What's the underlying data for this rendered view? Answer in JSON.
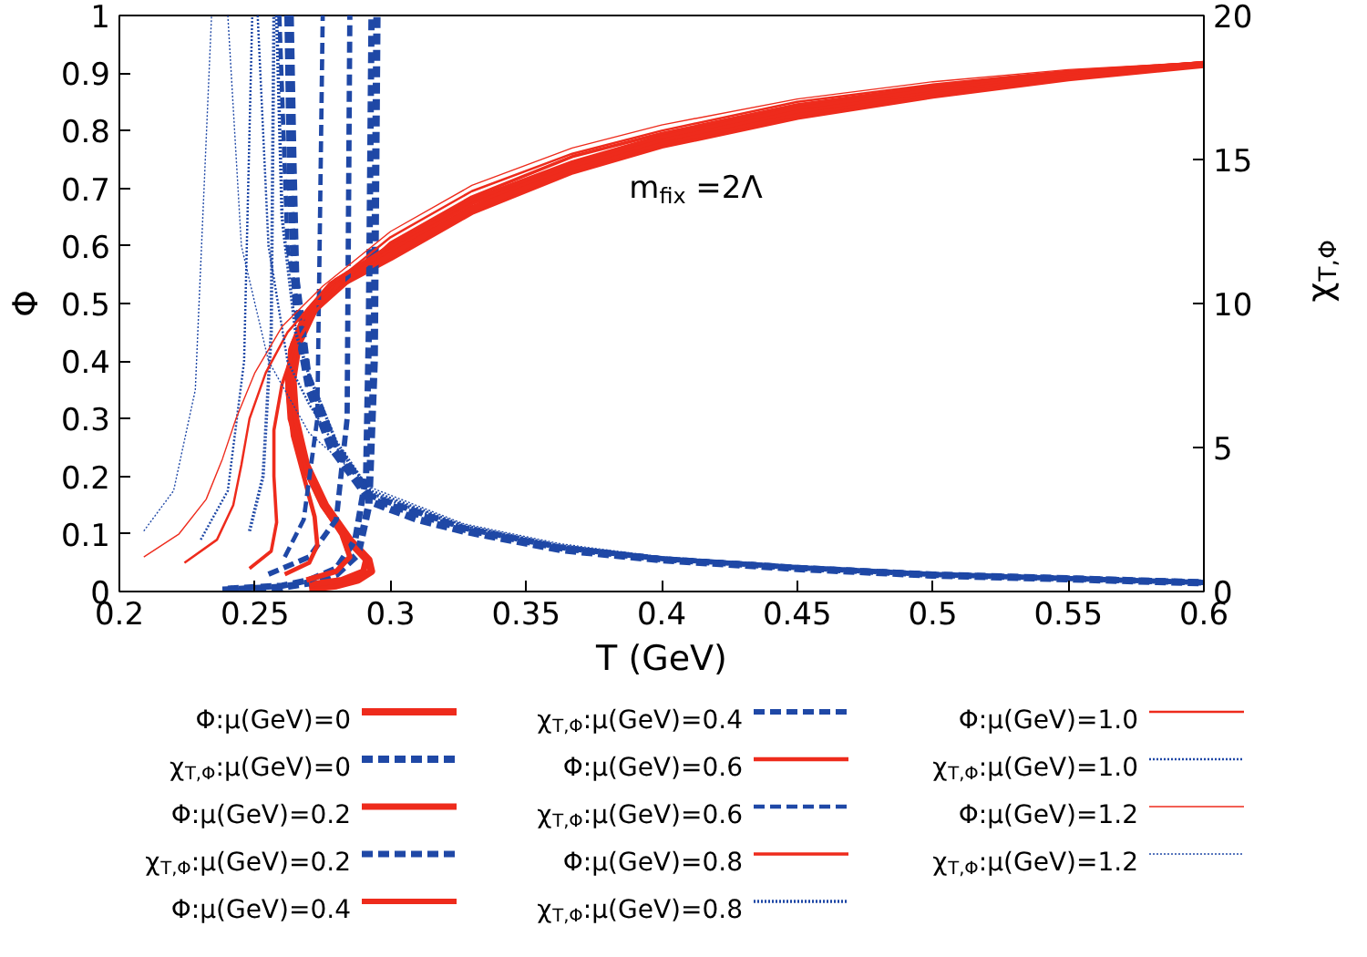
{
  "chart_data": {
    "type": "line",
    "xlabel": "T (GeV)",
    "ylabel": "Φ",
    "y2label": "χ$_{T,Φ}$",
    "annotations": [
      "m$_{fix}$ =2Λ"
    ],
    "xlim": [
      0.2,
      0.6
    ],
    "xticks": [
      0.2,
      0.25,
      0.3,
      0.35,
      0.4,
      0.45,
      0.5,
      0.55,
      0.6
    ],
    "ylim": [
      0,
      1
    ],
    "yticks": [
      0,
      0.1,
      0.2,
      0.3,
      0.4,
      0.5,
      0.6,
      0.7,
      0.8,
      0.9,
      1
    ],
    "y2lim": [
      0,
      20
    ],
    "y2ticks": [
      0,
      5,
      10,
      15,
      20
    ],
    "grid": false,
    "legend": "bottom",
    "marker": "none",
    "series": [
      {
        "name": "Φ:μ(GeV)=0",
        "color": "#ee2b1c",
        "line_style": "solid",
        "x": [
          0.27,
          0.28,
          0.288,
          0.293,
          0.292,
          0.285,
          0.276,
          0.269,
          0.265,
          0.264,
          0.266,
          0.272,
          0.282,
          0.3,
          0.33,
          0.367,
          0.4,
          0.45,
          0.5,
          0.55,
          0.6
        ],
        "values": [
          0.005,
          0.01,
          0.02,
          0.035,
          0.055,
          0.09,
          0.15,
          0.22,
          0.3,
          0.37,
          0.43,
          0.49,
          0.535,
          0.58,
          0.66,
          0.73,
          0.775,
          0.825,
          0.862,
          0.892,
          0.915
        ]
      },
      {
        "name": "χ$_{T,Φ}$:μ(GeV)=0",
        "color": "#1f48a6",
        "line_style": "dashed",
        "axis": "y2",
        "x": [
          0.238,
          0.25,
          0.26,
          0.27,
          0.28,
          0.288,
          0.292,
          0.294,
          0.295
        ],
        "values": [
          0.05,
          0.1,
          0.15,
          0.3,
          0.6,
          1.3,
          3,
          8,
          20
        ]
      },
      {
        "color": "#1f48a6",
        "line_style": "dashed",
        "axis": "y2",
        "x": [
          0.263,
          0.264,
          0.265,
          0.2665,
          0.27,
          0.278,
          0.293,
          0.31,
          0.327,
          0.363,
          0.4,
          0.45,
          0.5,
          0.55,
          0.6
        ],
        "values": [
          20,
          15,
          11,
          8.8,
          7,
          5,
          3.1,
          2.5,
          2.1,
          1.45,
          1.1,
          0.8,
          0.57,
          0.44,
          0.3
        ]
      },
      {
        "name": "Φ:μ(GeV)=0.2",
        "color": "#ee2b1c",
        "line_style": "solid",
        "x": [
          0.27,
          0.282,
          0.29,
          0.291,
          0.284,
          0.275,
          0.268,
          0.264,
          0.263,
          0.265,
          0.271,
          0.281,
          0.3,
          0.33,
          0.367,
          0.4,
          0.45,
          0.5,
          0.55,
          0.6
        ],
        "values": [
          0.012,
          0.02,
          0.035,
          0.055,
          0.09,
          0.15,
          0.22,
          0.3,
          0.37,
          0.43,
          0.49,
          0.535,
          0.585,
          0.665,
          0.735,
          0.78,
          0.83,
          0.866,
          0.895,
          0.916
        ]
      },
      {
        "name": "χ$_{T,Φ}$:μ(GeV)=0.2",
        "color": "#1f48a6",
        "line_style": "dashed",
        "axis": "y2",
        "x": [
          0.24,
          0.26,
          0.27,
          0.28,
          0.287,
          0.291,
          0.292,
          0.293
        ],
        "values": [
          0.1,
          0.2,
          0.4,
          0.8,
          1.8,
          4,
          9,
          20
        ]
      },
      {
        "color": "#1f48a6",
        "line_style": "dashed",
        "axis": "y2",
        "x": [
          0.262,
          0.263,
          0.265,
          0.27,
          0.278,
          0.293,
          0.327,
          0.363,
          0.4,
          0.45,
          0.5,
          0.55,
          0.6
        ],
        "values": [
          20,
          14,
          10,
          7.2,
          5.1,
          3.2,
          2.15,
          1.5,
          1.12,
          0.82,
          0.58,
          0.45,
          0.31
        ]
      },
      {
        "name": "Φ:μ(GeV)=0.4",
        "color": "#ee2b1c",
        "line_style": "solid",
        "x": [
          0.269,
          0.28,
          0.285,
          0.282,
          0.275,
          0.268,
          0.263,
          0.262,
          0.264,
          0.27,
          0.28,
          0.3,
          0.33,
          0.367,
          0.4,
          0.45,
          0.5,
          0.55,
          0.6
        ],
        "values": [
          0.02,
          0.035,
          0.06,
          0.1,
          0.15,
          0.22,
          0.3,
          0.37,
          0.43,
          0.49,
          0.54,
          0.595,
          0.675,
          0.74,
          0.785,
          0.835,
          0.87,
          0.897,
          0.916
        ]
      },
      {
        "name": "χ$_{T,Φ}$:μ(GeV)=0.4",
        "color": "#1f48a6",
        "line_style": "dashed",
        "axis": "y2",
        "x": [
          0.255,
          0.27,
          0.28,
          0.284,
          0.285
        ],
        "values": [
          0.6,
          1.2,
          2.5,
          6,
          20
        ]
      },
      {
        "color": "#1f48a6",
        "line_style": "dashed",
        "axis": "y2",
        "x": [
          0.262,
          0.264,
          0.27,
          0.28,
          0.293,
          0.327,
          0.363,
          0.4,
          0.45,
          0.5,
          0.55,
          0.6
        ],
        "values": [
          20,
          12,
          7.4,
          5,
          3.3,
          2.2,
          1.52,
          1.14,
          0.83,
          0.59,
          0.45,
          0.31
        ]
      },
      {
        "name": "Φ:μ(GeV)=0.6",
        "color": "#ee2b1c",
        "line_style": "solid",
        "x": [
          0.261,
          0.27,
          0.273,
          0.272,
          0.268,
          0.264,
          0.262,
          0.263,
          0.268,
          0.278,
          0.3,
          0.33,
          0.367,
          0.4,
          0.45,
          0.5,
          0.55,
          0.6
        ],
        "values": [
          0.03,
          0.05,
          0.08,
          0.13,
          0.2,
          0.27,
          0.35,
          0.42,
          0.48,
          0.535,
          0.6,
          0.68,
          0.745,
          0.79,
          0.84,
          0.873,
          0.9,
          0.917
        ]
      },
      {
        "name": "χ$_{T,Φ}$:μ(GeV)=0.6",
        "color": "#1f48a6",
        "line_style": "dashed",
        "axis": "y2",
        "x": [
          0.261,
          0.268,
          0.273,
          0.275
        ],
        "values": [
          1.2,
          2.5,
          6,
          20
        ]
      },
      {
        "color": "#1f48a6",
        "line_style": "dashed",
        "axis": "y2",
        "x": [
          0.259,
          0.262,
          0.27,
          0.28,
          0.293,
          0.327,
          0.363,
          0.4,
          0.45,
          0.5,
          0.55,
          0.6
        ],
        "values": [
          20,
          12,
          7.5,
          5.1,
          3.35,
          2.22,
          1.54,
          1.15,
          0.84,
          0.6,
          0.46,
          0.32
        ]
      },
      {
        "name": "Φ:μ(GeV)=0.8",
        "color": "#ee2b1c",
        "line_style": "solid",
        "x": [
          0.248,
          0.256,
          0.258,
          0.257,
          0.257,
          0.26,
          0.265,
          0.273,
          0.285,
          0.3,
          0.33,
          0.367,
          0.4,
          0.45,
          0.5,
          0.55,
          0.6
        ],
        "values": [
          0.04,
          0.07,
          0.12,
          0.2,
          0.28,
          0.36,
          0.43,
          0.49,
          0.54,
          0.605,
          0.685,
          0.755,
          0.795,
          0.845,
          0.877,
          0.902,
          0.918
        ]
      },
      {
        "name": "χ$_{T,Φ}$:μ(GeV)=0.8",
        "color": "#1f48a6",
        "line_style": "dotted",
        "axis": "y2",
        "x": [
          0.248,
          0.253,
          0.256,
          0.257
        ],
        "values": [
          2.1,
          4,
          9,
          20
        ]
      },
      {
        "color": "#1f48a6",
        "line_style": "dotted",
        "axis": "y2",
        "x": [
          0.258,
          0.26,
          0.265,
          0.27,
          0.28,
          0.293,
          0.327,
          0.363,
          0.4,
          0.45,
          0.5,
          0.55,
          0.6
        ],
        "values": [
          20,
          13,
          9,
          7.5,
          5.2,
          3.4,
          2.25,
          1.55,
          1.16,
          0.84,
          0.6,
          0.46,
          0.32
        ]
      },
      {
        "name": "Φ:μ(GeV)=1.0",
        "color": "#ee2b1c",
        "line_style": "solid",
        "x": [
          0.224,
          0.236,
          0.242,
          0.245,
          0.248,
          0.254,
          0.262,
          0.275,
          0.3,
          0.33,
          0.367,
          0.4,
          0.45,
          0.5,
          0.55,
          0.6
        ],
        "values": [
          0.05,
          0.09,
          0.15,
          0.22,
          0.3,
          0.38,
          0.45,
          0.52,
          0.615,
          0.695,
          0.76,
          0.8,
          0.85,
          0.88,
          0.904,
          0.918
        ]
      },
      {
        "name": "χ$_{T,Φ}$:μ(GeV)=1.0",
        "color": "#1f48a6",
        "line_style": "dotted",
        "axis": "y2",
        "x": [
          0.23,
          0.24,
          0.246,
          0.249
        ],
        "values": [
          1.8,
          3.5,
          8,
          20
        ]
      },
      {
        "color": "#1f48a6",
        "line_style": "dotted",
        "axis": "y2",
        "x": [
          0.251,
          0.255,
          0.262,
          0.27,
          0.28,
          0.293,
          0.327,
          0.363,
          0.4,
          0.45,
          0.5,
          0.55,
          0.6
        ],
        "values": [
          20,
          12,
          8,
          6.5,
          5,
          3.5,
          2.3,
          1.6,
          1.18,
          0.85,
          0.61,
          0.47,
          0.33
        ]
      },
      {
        "name": "Φ:μ(GeV)=1.2",
        "color": "#ee2b1c",
        "line_style": "solid",
        "x": [
          0.209,
          0.222,
          0.232,
          0.238,
          0.243,
          0.25,
          0.26,
          0.275,
          0.3,
          0.33,
          0.367,
          0.4,
          0.45,
          0.5,
          0.55,
          0.6
        ],
        "values": [
          0.06,
          0.1,
          0.16,
          0.23,
          0.3,
          0.38,
          0.46,
          0.53,
          0.625,
          0.705,
          0.77,
          0.81,
          0.855,
          0.885,
          0.906,
          0.919
        ]
      },
      {
        "name": "χ$_{T,Φ}$:μ(GeV)=1.2",
        "color": "#1f48a6",
        "line_style": "dotted",
        "axis": "y2",
        "x": [
          0.209,
          0.22,
          0.228,
          0.234
        ],
        "values": [
          2.1,
          3.5,
          7,
          20
        ]
      },
      {
        "color": "#1f48a6",
        "line_style": "dotted",
        "axis": "y2",
        "x": [
          0.24,
          0.245,
          0.255,
          0.27,
          0.293,
          0.327,
          0.363,
          0.4,
          0.45,
          0.5,
          0.55,
          0.6
        ],
        "values": [
          20,
          12,
          8,
          5.5,
          3.6,
          2.35,
          1.65,
          1.2,
          0.87,
          0.62,
          0.48,
          0.34
        ]
      }
    ]
  }
}
